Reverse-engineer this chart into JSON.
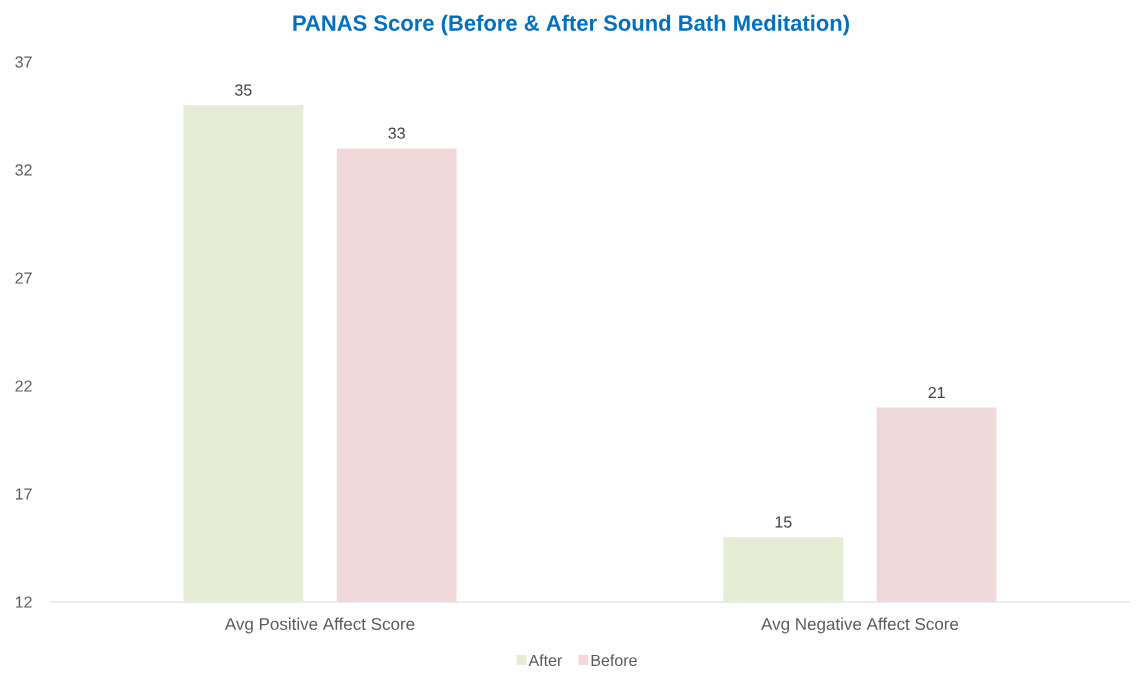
{
  "chart_data": {
    "type": "bar",
    "title": "PANAS Score (Before & After Sound Bath Meditation)",
    "categories": [
      "Avg Positive Affect Score",
      "Avg Negative Affect Score"
    ],
    "series": [
      {
        "name": "After",
        "color": "#e6edd5",
        "values": [
          35,
          15
        ]
      },
      {
        "name": "Before",
        "color": "#f2d9d9",
        "values": [
          33,
          21
        ]
      }
    ],
    "ylim": [
      12,
      37
    ],
    "yticks": [
      12,
      17,
      22,
      27,
      32,
      37
    ],
    "data_labels": true,
    "legend": "bottom"
  }
}
